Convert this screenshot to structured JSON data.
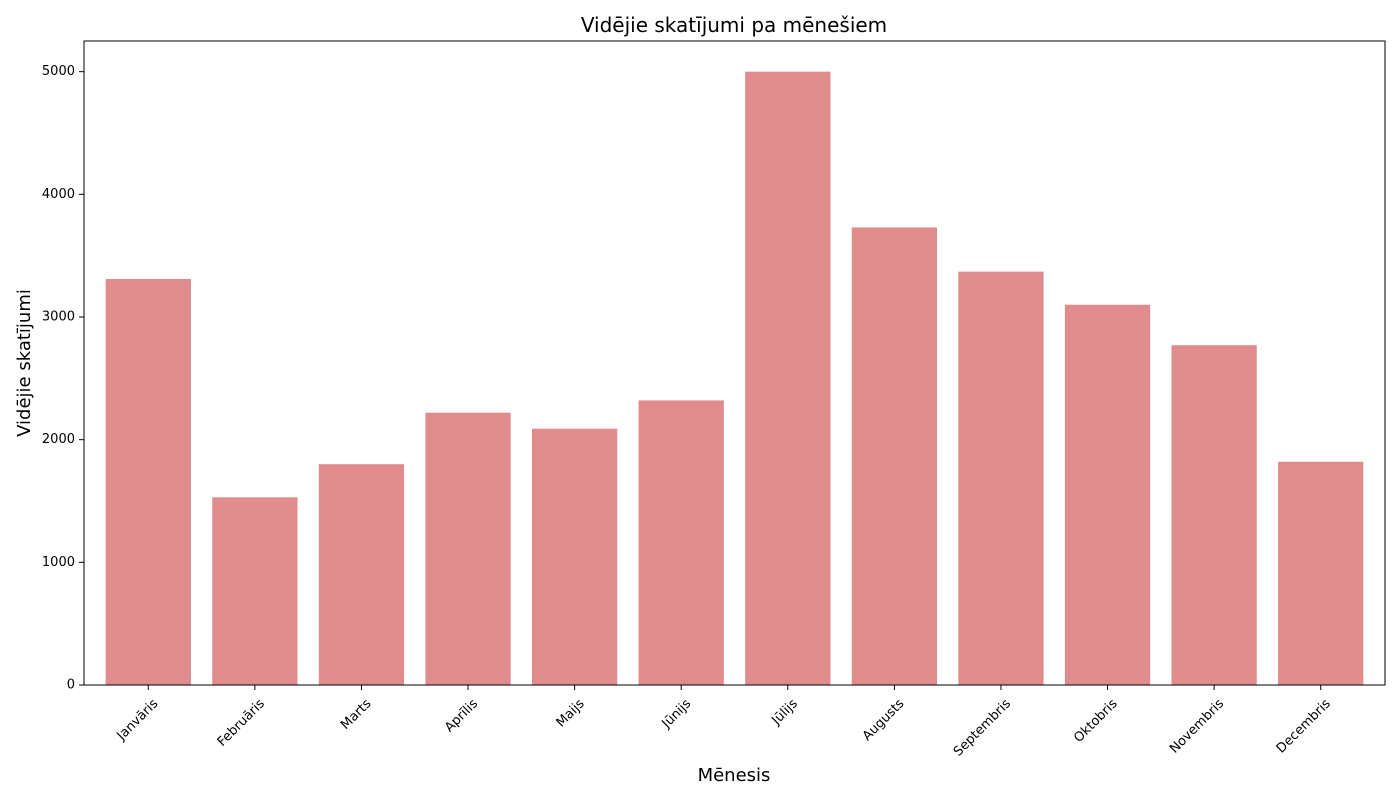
{
  "chart_data": {
    "type": "bar",
    "title": "Vidējie skatījumi pa mēnešiem",
    "xlabel": "Mēnesis",
    "ylabel": "Vidējie skatījumi",
    "categories": [
      "Janvāris",
      "Februāris",
      "Marts",
      "Aprīlis",
      "Maijs",
      "Jūnijs",
      "Jūlijs",
      "Augusts",
      "Septembris",
      "Oktobris",
      "Novembris",
      "Decembris"
    ],
    "values": [
      3310,
      1530,
      1800,
      2220,
      2090,
      2320,
      5000,
      3730,
      3370,
      3100,
      2770,
      1820
    ],
    "ylim": [
      0,
      5250
    ],
    "yticks": [
      0,
      1000,
      2000,
      3000,
      4000,
      5000
    ],
    "grid": false,
    "legend": "none",
    "bar_color": "#e08c8c",
    "axis_color": "#000000"
  }
}
